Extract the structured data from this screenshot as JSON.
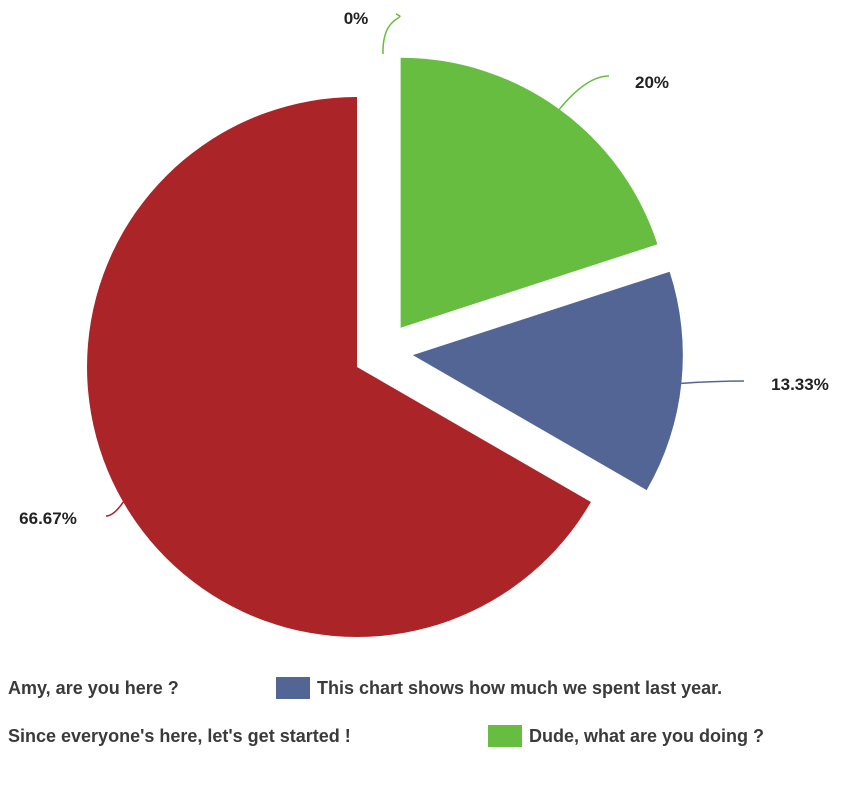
{
  "chart_data": {
    "type": "pie",
    "title": "",
    "categories": [
      "Dude, what are you doing ?",
      "This chart shows how much we spent last year.",
      "Since everyone's here, let's get started !",
      "Amy, are you here ?"
    ],
    "values": [
      20,
      13.33,
      66.67,
      0
    ],
    "labels": [
      "20%",
      "13.33%",
      "66.67%",
      "0%"
    ],
    "colors": [
      "#66bd40",
      "#536595",
      "#ab2428",
      "#66bd40"
    ],
    "legend_placement": "bottom",
    "slice_style": "exploded",
    "legend": [
      {
        "label": "Amy, are you here ?",
        "color": ""
      },
      {
        "label": "This chart shows how much we spent last year.",
        "color": "#536595"
      },
      {
        "label": "Since everyone's here, let's get started !",
        "color": ""
      },
      {
        "label": "Dude, what are you doing ?",
        "color": "#66bd40"
      }
    ]
  }
}
